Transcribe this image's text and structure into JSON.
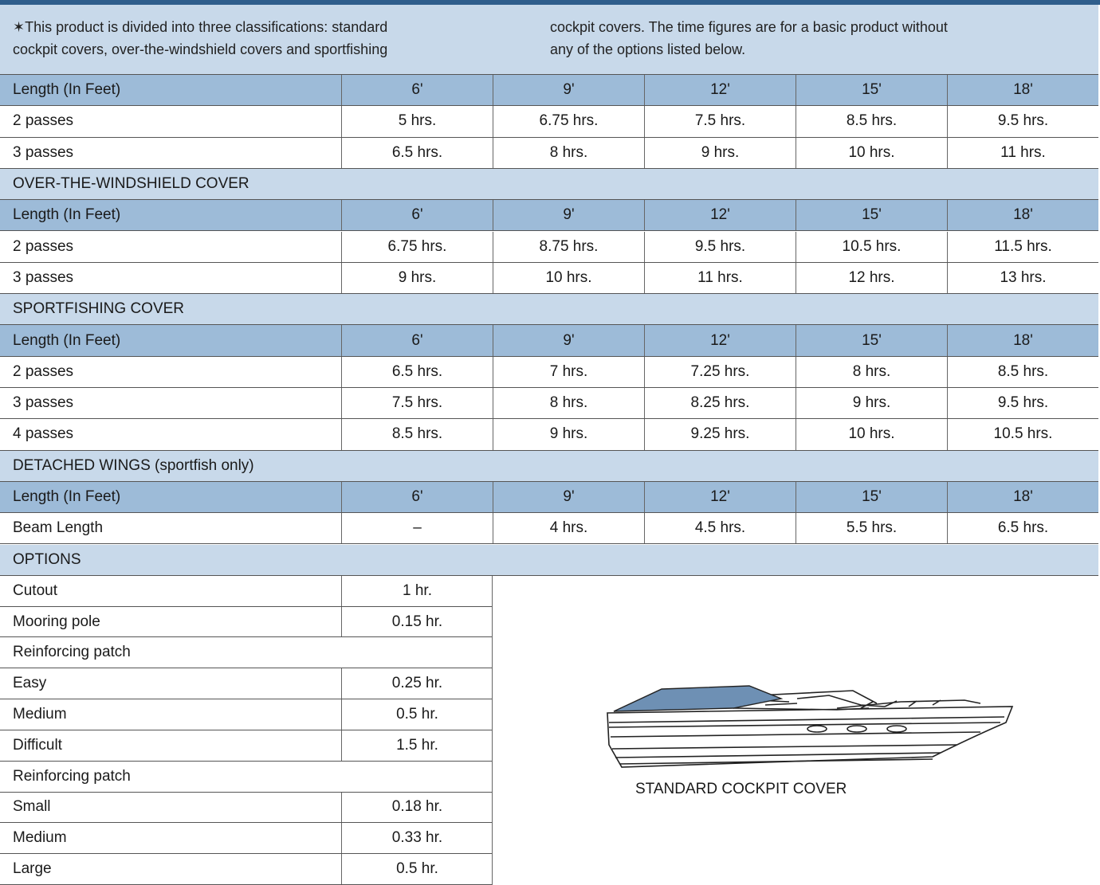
{
  "note": {
    "columns": [
      [
        "✶This product is divided into three classifications: standard",
        "cockpit covers, over-the-windshield covers and sportfishing"
      ],
      [
        "cockpit covers. The time figures are for a basic product without",
        "any of the options listed below."
      ]
    ]
  },
  "sections": [
    {
      "header": [
        "Length (In Feet)",
        "6'",
        "9'",
        "12'",
        "15'",
        "18'"
      ],
      "rows": [
        [
          "2 passes",
          "5 hrs.",
          "6.75 hrs.",
          "7.5 hrs.",
          "8.5 hrs.",
          "9.5 hrs."
        ],
        [
          "3 passes",
          "6.5 hrs.",
          "8 hrs.",
          "9 hrs.",
          "10 hrs.",
          "11 hrs."
        ]
      ]
    },
    {
      "title": "OVER-THE-WINDSHIELD COVER",
      "header": [
        "Length (In Feet)",
        "6'",
        "9'",
        "12'",
        "15'",
        "18'"
      ],
      "rows": [
        [
          "2 passes",
          "6.75 hrs.",
          "8.75 hrs.",
          "9.5 hrs.",
          "10.5 hrs.",
          "11.5 hrs."
        ],
        [
          "3 passes",
          "9 hrs.",
          "10 hrs.",
          "11 hrs.",
          "12 hrs.",
          "13 hrs."
        ]
      ]
    },
    {
      "title": "SPORTFISHING COVER",
      "header": [
        "Length (In Feet)",
        "6'",
        "9'",
        "12'",
        "15'",
        "18'"
      ],
      "rows": [
        [
          "2 passes",
          "6.5 hrs.",
          "7 hrs.",
          "7.25 hrs.",
          "8 hrs.",
          "8.5 hrs."
        ],
        [
          "3 passes",
          "7.5 hrs.",
          "8 hrs.",
          "8.25 hrs.",
          "9 hrs.",
          "9.5 hrs."
        ],
        [
          "4 passes",
          "8.5 hrs.",
          "9 hrs.",
          "9.25 hrs.",
          "10 hrs.",
          "10.5 hrs."
        ]
      ]
    },
    {
      "title": "DETACHED WINGS (sportfish only)",
      "header": [
        "Length (In Feet)",
        "6'",
        "9'",
        "12'",
        "15'",
        "18'"
      ],
      "rows": [
        [
          "Beam Length",
          "–",
          "4 hrs.",
          "4.5 hrs.",
          "5.5 hrs.",
          "6.5 hrs."
        ]
      ]
    }
  ],
  "options": {
    "title": "OPTIONS",
    "rows": [
      [
        "Cutout",
        "1 hr."
      ],
      [
        "Mooring pole",
        "0.15 hr."
      ],
      [
        "Reinforcing patch"
      ],
      [
        "Easy",
        "0.25 hr."
      ],
      [
        "Medium",
        "0.5 hr."
      ],
      [
        "Difficult",
        "1.5 hr."
      ],
      [
        "Reinforcing patch"
      ],
      [
        "Small",
        "0.18 hr."
      ],
      [
        "Medium",
        "0.33 hr."
      ],
      [
        "Large",
        "0.5 hr."
      ]
    ]
  },
  "figure": {
    "caption": "STANDARD COCKPIT COVER"
  }
}
